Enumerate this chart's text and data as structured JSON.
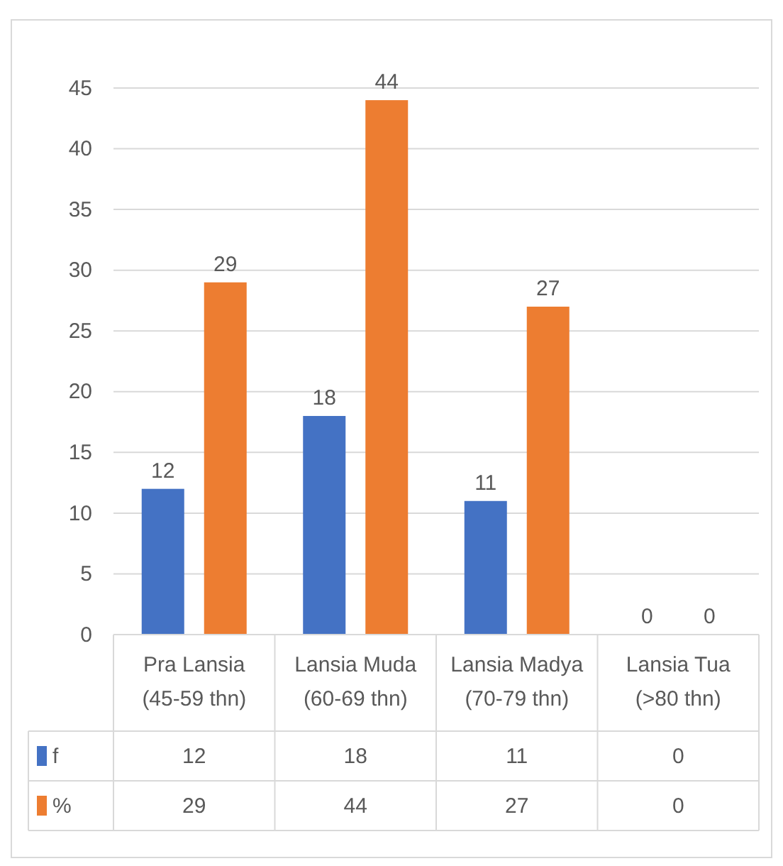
{
  "chart_data": {
    "type": "bar",
    "categories": [
      "Pra Lansia (45-59 thn)",
      "Lansia Muda (60-69 thn)",
      "Lansia Madya (70-79 thn)",
      "Lansia Tua (>80 thn)"
    ],
    "series": [
      {
        "name": "f",
        "color": "#4472c4",
        "values": [
          12,
          18,
          11,
          0
        ],
        "value_labels": [
          "12",
          "18",
          "11",
          "0"
        ]
      },
      {
        "name": "%",
        "color": "#ed7d31",
        "values": [
          29,
          44,
          27,
          0
        ],
        "value_labels": [
          "29",
          "44",
          "27",
          "0"
        ]
      }
    ],
    "annotations": [
      "12",
      "18",
      "11",
      "0",
      "29",
      "44",
      "27",
      "0"
    ],
    "ylim": [
      0,
      45
    ],
    "yticks": [
      0,
      5,
      10,
      15,
      20,
      25,
      30,
      35,
      40,
      45
    ],
    "grid": "y",
    "data_labels": true,
    "legend": "bottom"
  }
}
